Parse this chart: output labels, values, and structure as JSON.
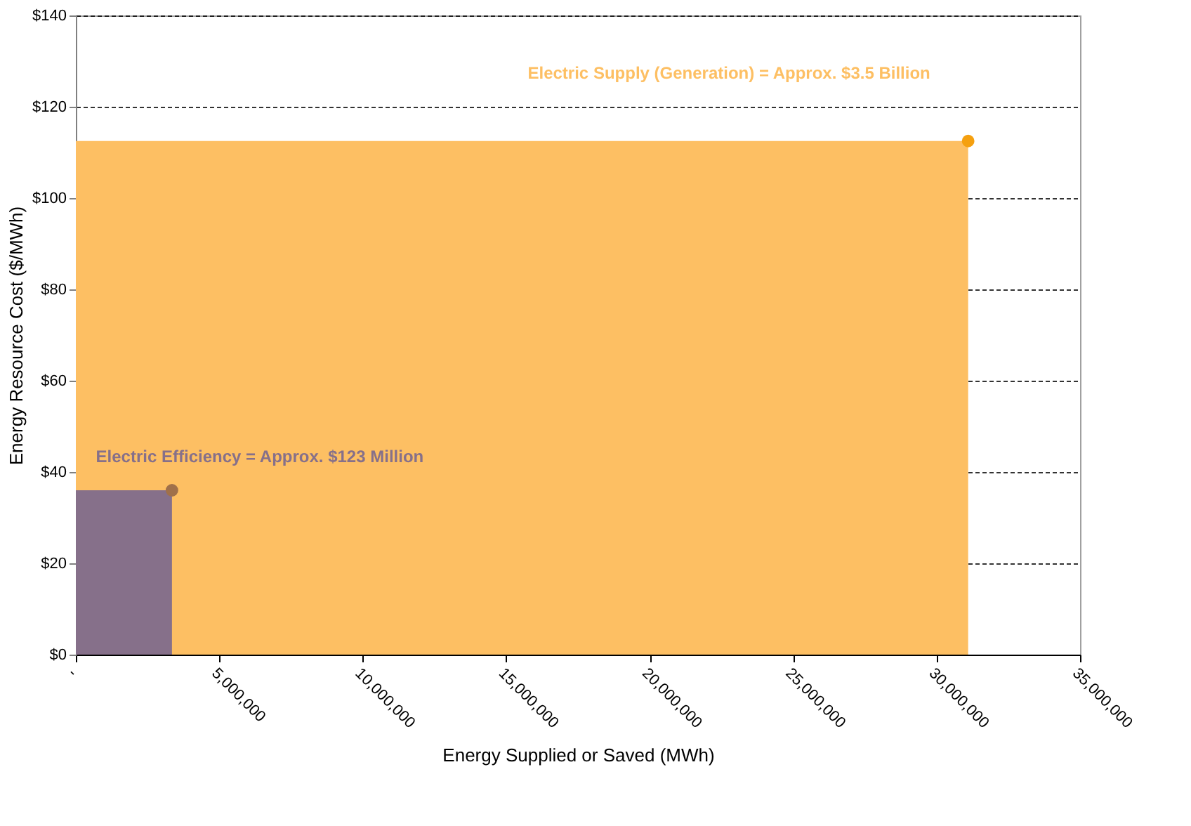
{
  "chart_data": {
    "type": "area",
    "xlabel": "Energy Supplied or Saved (MWh)",
    "ylabel": "Energy Resource Cost ($/MWh)",
    "series": [
      {
        "color": "#fdbf63",
        "x": [
          0,
          31100000
        ],
        "values": [
          112.5,
          112.5
        ]
      },
      {
        "color": "#86708a",
        "x": [
          0,
          3350000
        ],
        "values": [
          36,
          36
        ]
      },
      {
        "type": "scatter",
        "color": "#f5a00f",
        "x": [
          31100000
        ],
        "values": [
          112.5
        ],
        "marker": "circle"
      },
      {
        "type": "scatter",
        "color": "#a0704a",
        "x": [
          3350000
        ],
        "values": [
          36
        ],
        "marker": "circle"
      }
    ],
    "annotations": [
      "Electric Supply (Generation) = Approx. $3.5 Billion",
      "Electric Efficiency = Approx. $123 Million"
    ],
    "xlim": [
      0,
      35000000
    ],
    "xticks": [
      {
        "value": 0,
        "label": "-"
      },
      {
        "value": 5000000,
        "label": "5,000,000"
      },
      {
        "value": 10000000,
        "label": "10,000,000"
      },
      {
        "value": 15000000,
        "label": "15,000,000"
      },
      {
        "value": 20000000,
        "label": "20,000,000"
      },
      {
        "value": 25000000,
        "label": "25,000,000"
      },
      {
        "value": 30000000,
        "label": "30,000,000"
      },
      {
        "value": 35000000,
        "label": "35,000,000"
      }
    ],
    "ylim": [
      0,
      140
    ],
    "yticks": [
      {
        "value": 0,
        "label": "$0"
      },
      {
        "value": 20,
        "label": "$20"
      },
      {
        "value": 40,
        "label": "$40"
      },
      {
        "value": 60,
        "label": "$60"
      },
      {
        "value": 80,
        "label": "$80"
      },
      {
        "value": 100,
        "label": "$100"
      },
      {
        "value": 120,
        "label": "$120"
      },
      {
        "value": 140,
        "label": "$140"
      }
    ],
    "grid": "y"
  }
}
